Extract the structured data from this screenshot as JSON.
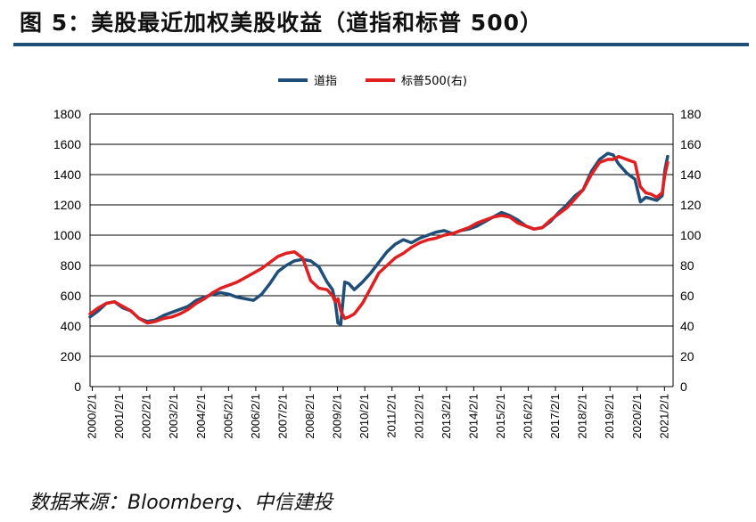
{
  "header": {
    "title": "图 5：美股最近加权美股收益（道指和标普 500）"
  },
  "footer": {
    "source": "数据来源：Bloomberg、中信建投"
  },
  "chart_data": {
    "type": "line",
    "title": "",
    "xlabel": "",
    "ylabel_left": "",
    "ylabel_right": "",
    "ylim_left": [
      0,
      1800
    ],
    "ylim_right": [
      0,
      180
    ],
    "yticks_left": [
      "0",
      "200",
      "400",
      "600",
      "800",
      "1000",
      "1200",
      "1400",
      "1600",
      "1800"
    ],
    "yticks_right": [
      "0",
      "20",
      "40",
      "60",
      "80",
      "100",
      "120",
      "140",
      "160",
      "180"
    ],
    "categories": [
      "2000/2/1",
      "2001/2/1",
      "2002/2/1",
      "2003/2/1",
      "2004/2/1",
      "2005/2/1",
      "2006/2/1",
      "2007/2/1",
      "2008/2/1",
      "2009/2/1",
      "2010/2/1",
      "2011/2/1",
      "2012/2/1",
      "2013/2/1",
      "2014/2/1",
      "2015/2/1",
      "2016/2/1",
      "2017/2/1",
      "2018/2/1",
      "2019/2/1",
      "2020/2/1",
      "2021/2/1"
    ],
    "grid": true,
    "legend_position": "top-center",
    "colors": {
      "dow": "#1f4e79",
      "sp500": "#e02020"
    },
    "series": [
      {
        "name": "道指",
        "axis": "left",
        "x": [
          2000.0,
          2000.3,
          2000.6,
          2000.9,
          2001.2,
          2001.5,
          2001.8,
          2002.1,
          2002.4,
          2002.7,
          2003.0,
          2003.3,
          2003.6,
          2003.9,
          2004.2,
          2004.5,
          2004.8,
          2005.1,
          2005.4,
          2005.7,
          2006.0,
          2006.3,
          2006.6,
          2006.9,
          2007.2,
          2007.5,
          2007.8,
          2008.1,
          2008.4,
          2008.7,
          2008.9,
          2009.0,
          2009.1,
          2009.2,
          2009.35,
          2009.5,
          2009.7,
          2010.0,
          2010.3,
          2010.6,
          2010.9,
          2011.2,
          2011.5,
          2011.8,
          2012.1,
          2012.4,
          2012.7,
          2013.0,
          2013.3,
          2013.6,
          2013.9,
          2014.2,
          2014.5,
          2014.8,
          2015.1,
          2015.4,
          2015.7,
          2016.0,
          2016.3,
          2016.6,
          2016.9,
          2017.2,
          2017.5,
          2017.8,
          2018.1,
          2018.4,
          2018.7,
          2019.0,
          2019.2,
          2019.4,
          2019.7,
          2020.0,
          2020.2,
          2020.4,
          2020.6,
          2020.8,
          2021.0,
          2021.1,
          2021.2
        ],
        "values": [
          460,
          500,
          550,
          560,
          520,
          500,
          450,
          430,
          440,
          470,
          490,
          510,
          530,
          570,
          590,
          610,
          620,
          610,
          590,
          580,
          570,
          610,
          680,
          760,
          800,
          830,
          840,
          830,
          790,
          690,
          640,
          560,
          420,
          410,
          690,
          680,
          640,
          690,
          750,
          820,
          890,
          940,
          970,
          950,
          980,
          1000,
          1020,
          1030,
          1010,
          1030,
          1040,
          1060,
          1090,
          1120,
          1150,
          1130,
          1100,
          1060,
          1040,
          1050,
          1090,
          1150,
          1200,
          1260,
          1300,
          1420,
          1500,
          1540,
          1530,
          1470,
          1410,
          1370,
          1220,
          1250,
          1240,
          1230,
          1260,
          1430,
          1520
        ]
      },
      {
        "name": "标普500(右)",
        "axis": "right",
        "x": [
          2000.0,
          2000.3,
          2000.6,
          2000.9,
          2001.2,
          2001.5,
          2001.8,
          2002.1,
          2002.4,
          2002.7,
          2003.0,
          2003.3,
          2003.6,
          2003.9,
          2004.2,
          2004.5,
          2004.8,
          2005.1,
          2005.4,
          2005.7,
          2006.0,
          2006.3,
          2006.6,
          2006.9,
          2007.2,
          2007.5,
          2007.8,
          2008.1,
          2008.4,
          2008.7,
          2008.9,
          2009.0,
          2009.1,
          2009.2,
          2009.35,
          2009.5,
          2009.7,
          2010.0,
          2010.3,
          2010.6,
          2010.9,
          2011.2,
          2011.5,
          2011.8,
          2012.1,
          2012.4,
          2012.7,
          2013.0,
          2013.3,
          2013.6,
          2013.9,
          2014.2,
          2014.5,
          2014.8,
          2015.1,
          2015.4,
          2015.7,
          2016.0,
          2016.3,
          2016.6,
          2016.9,
          2017.2,
          2017.5,
          2017.8,
          2018.1,
          2018.4,
          2018.7,
          2019.0,
          2019.2,
          2019.4,
          2019.7,
          2020.0,
          2020.2,
          2020.4,
          2020.6,
          2020.8,
          2021.0,
          2021.1,
          2021.2
        ],
        "values": [
          48,
          52,
          55,
          56,
          53,
          50,
          45,
          42,
          43,
          45,
          46,
          48,
          51,
          55,
          58,
          62,
          65,
          67,
          69,
          72,
          75,
          78,
          82,
          86,
          88,
          89,
          85,
          70,
          65,
          64,
          60,
          56,
          58,
          50,
          45,
          46,
          48,
          55,
          65,
          75,
          80,
          85,
          88,
          92,
          95,
          97,
          98,
          100,
          101,
          103,
          105,
          108,
          110,
          112,
          113,
          112,
          108,
          106,
          104,
          105,
          110,
          114,
          118,
          124,
          130,
          140,
          148,
          150,
          150,
          152,
          150,
          148,
          132,
          128,
          127,
          125,
          128,
          140,
          148
        ]
      }
    ]
  }
}
